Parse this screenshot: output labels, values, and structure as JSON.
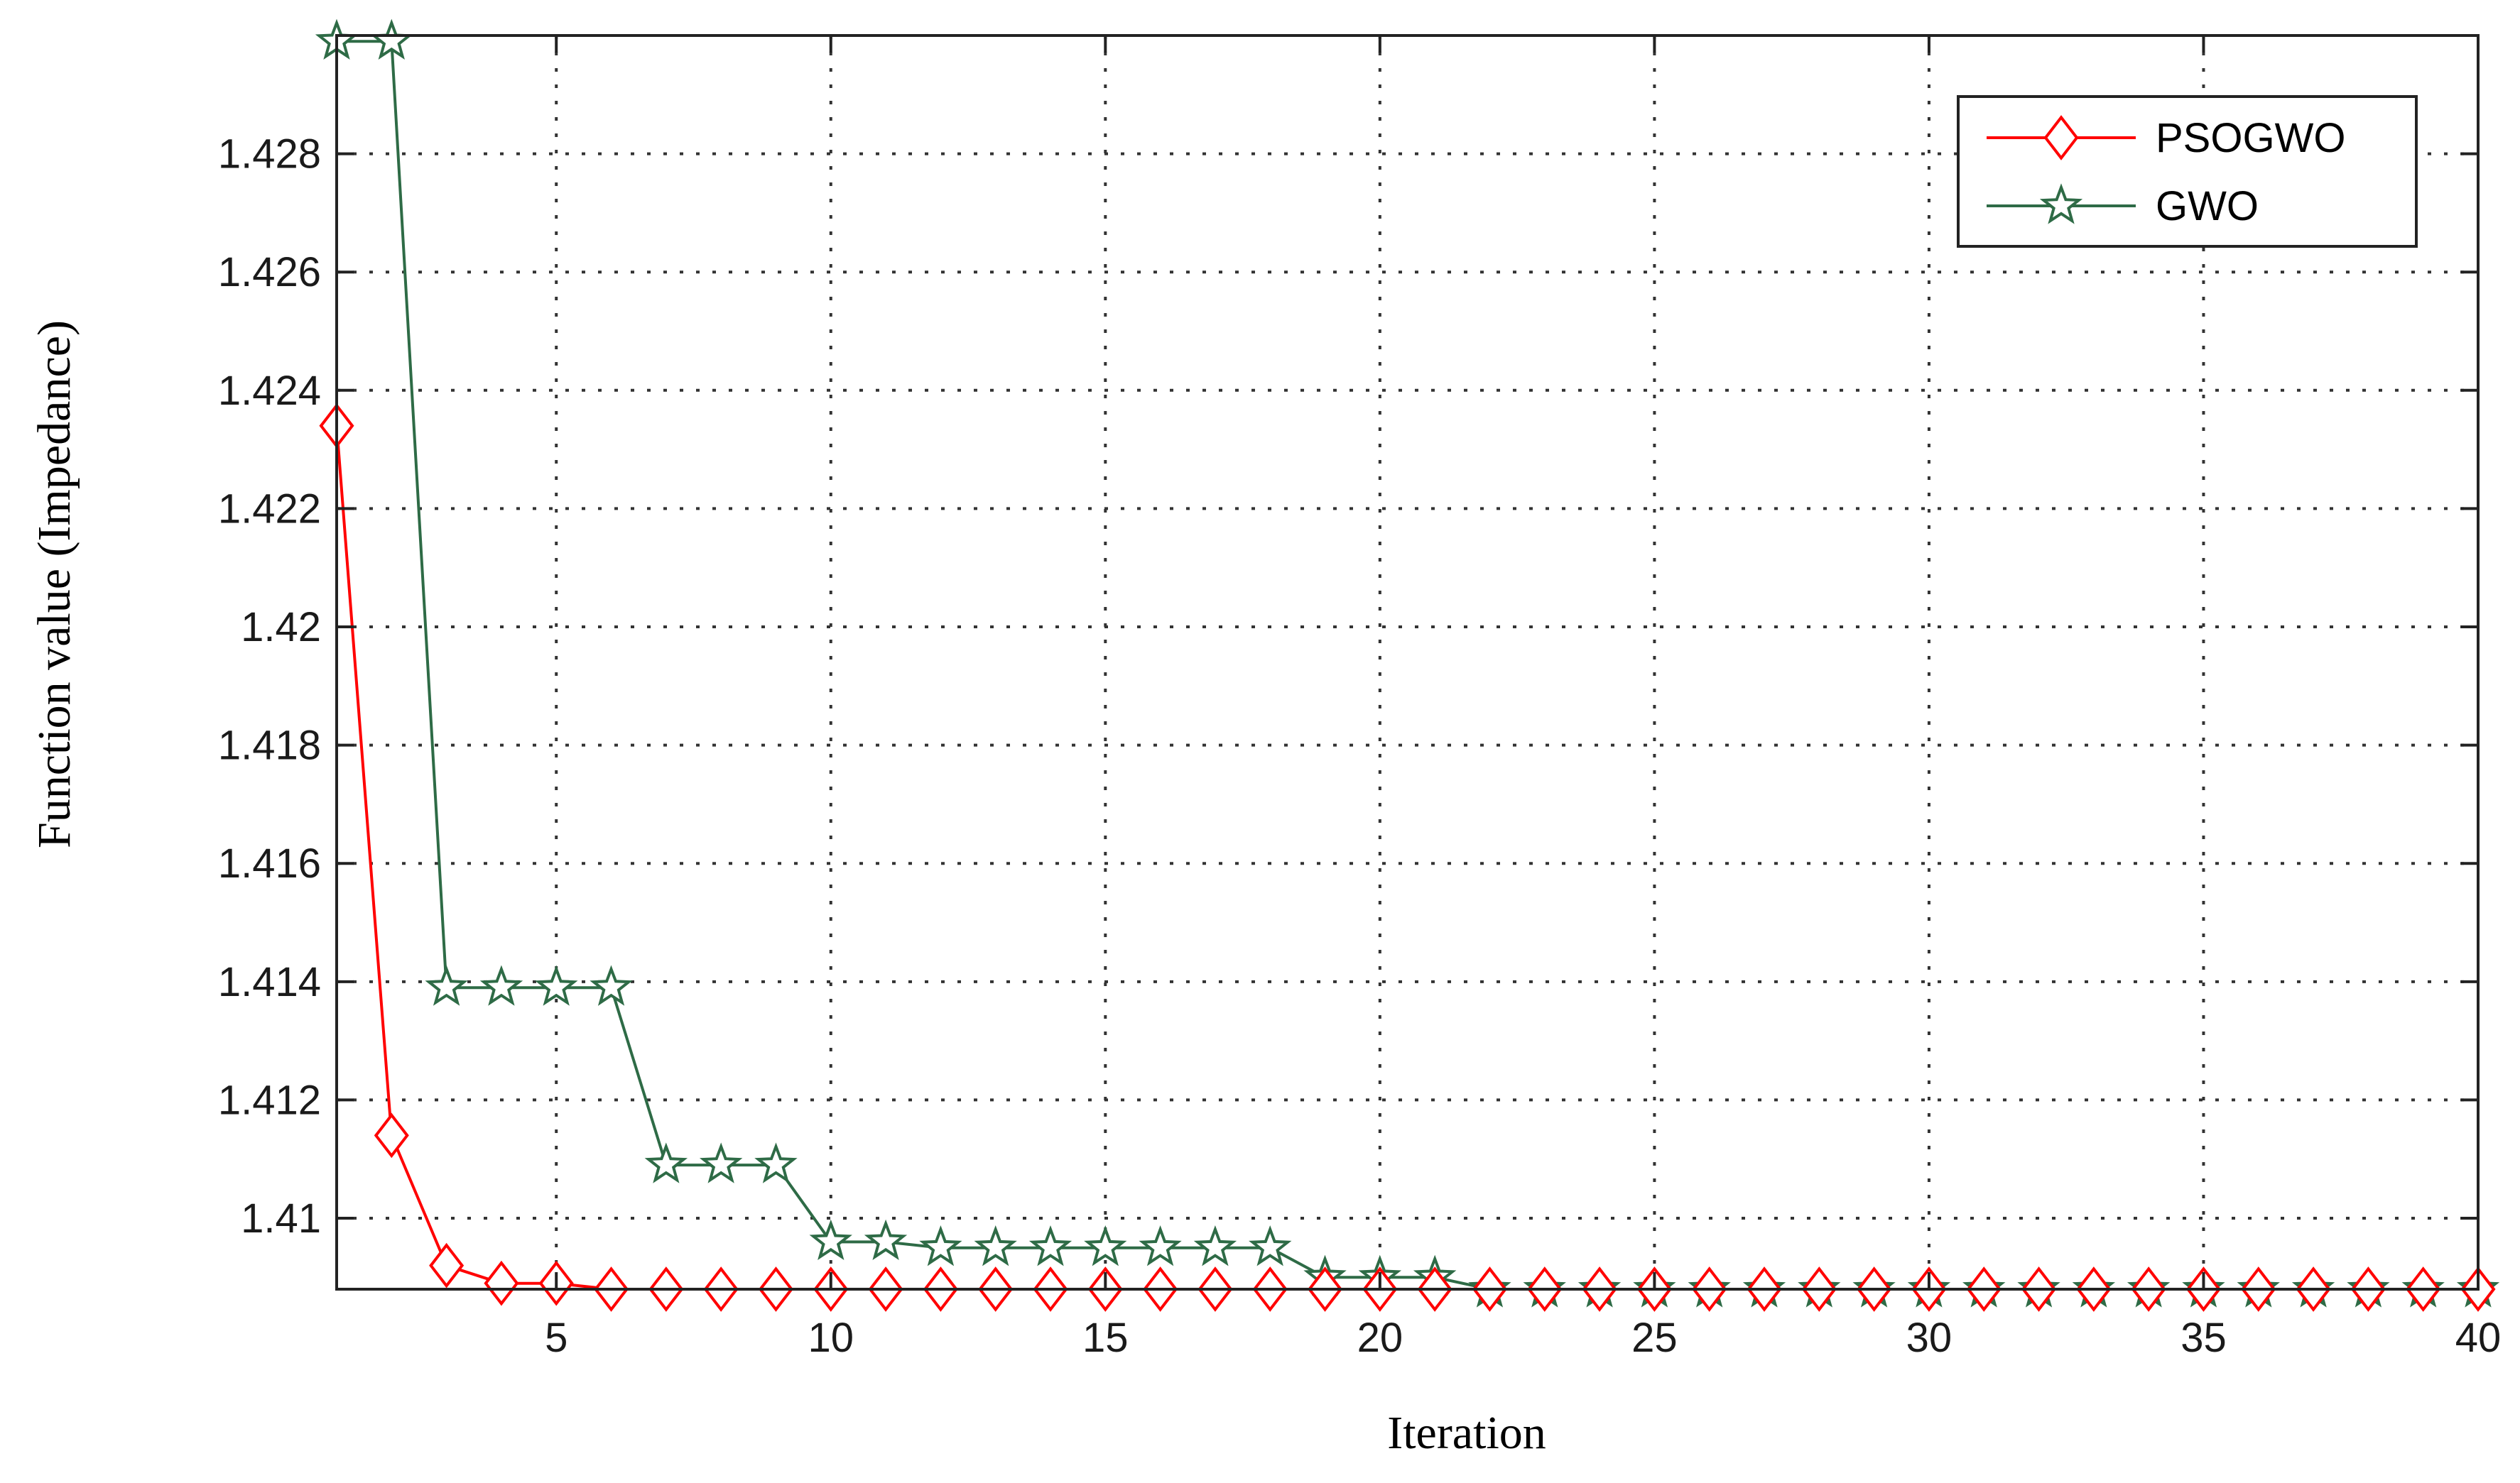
{
  "chart_data": {
    "type": "line",
    "xlabel": "Iteration",
    "ylabel": "Function value (Impedance)",
    "xlim": [
      1,
      40
    ],
    "ylim": [
      1.4088,
      1.43
    ],
    "x_ticks": [
      5,
      10,
      15,
      20,
      25,
      30,
      35,
      40
    ],
    "y_ticks": [
      1.41,
      1.412,
      1.414,
      1.416,
      1.418,
      1.42,
      1.422,
      1.424,
      1.426,
      1.428
    ],
    "y_tick_labels": [
      "1.41",
      "1.412",
      "1.414",
      "1.416",
      "1.418",
      "1.42",
      "1.422",
      "1.424",
      "1.426",
      "1.428"
    ],
    "x_tick_labels": [
      "5",
      "10",
      "15",
      "20",
      "25",
      "30",
      "35",
      "40"
    ],
    "grid": true,
    "legend_position": "top-right",
    "x": [
      1,
      2,
      3,
      4,
      5,
      6,
      7,
      8,
      9,
      10,
      11,
      12,
      13,
      14,
      15,
      16,
      17,
      18,
      19,
      20,
      21,
      22,
      23,
      24,
      25,
      26,
      27,
      28,
      29,
      30,
      31,
      32,
      33,
      34,
      35,
      36,
      37,
      38,
      39,
      40
    ],
    "series": [
      {
        "name": "PSOGWO",
        "color": "#ff0000",
        "marker": "diamond",
        "values": [
          1.4234,
          1.4114,
          1.4092,
          1.4089,
          1.4089,
          1.4088,
          1.4088,
          1.4088,
          1.4088,
          1.4088,
          1.4088,
          1.4088,
          1.4088,
          1.4088,
          1.4088,
          1.4088,
          1.4088,
          1.4088,
          1.4088,
          1.4088,
          1.4088,
          1.4088,
          1.4088,
          1.4088,
          1.4088,
          1.4088,
          1.4088,
          1.4088,
          1.4088,
          1.4088,
          1.4088,
          1.4088,
          1.4088,
          1.4088,
          1.4088,
          1.4088,
          1.4088,
          1.4088,
          1.4088,
          1.4088
        ]
      },
      {
        "name": "GWO",
        "color": "#2e6b46",
        "marker": "star",
        "values": [
          1.4299,
          1.4299,
          1.4139,
          1.4139,
          1.4139,
          1.4139,
          1.4109,
          1.4109,
          1.4109,
          1.4096,
          1.4096,
          1.4095,
          1.4095,
          1.4095,
          1.4095,
          1.4095,
          1.4095,
          1.4095,
          1.409,
          1.409,
          1.409,
          1.4088,
          1.4088,
          1.4088,
          1.4088,
          1.4088,
          1.4088,
          1.4088,
          1.4088,
          1.4088,
          1.4088,
          1.4088,
          1.4088,
          1.4088,
          1.4088,
          1.4088,
          1.4088,
          1.4088,
          1.4088,
          1.4088
        ]
      }
    ]
  }
}
